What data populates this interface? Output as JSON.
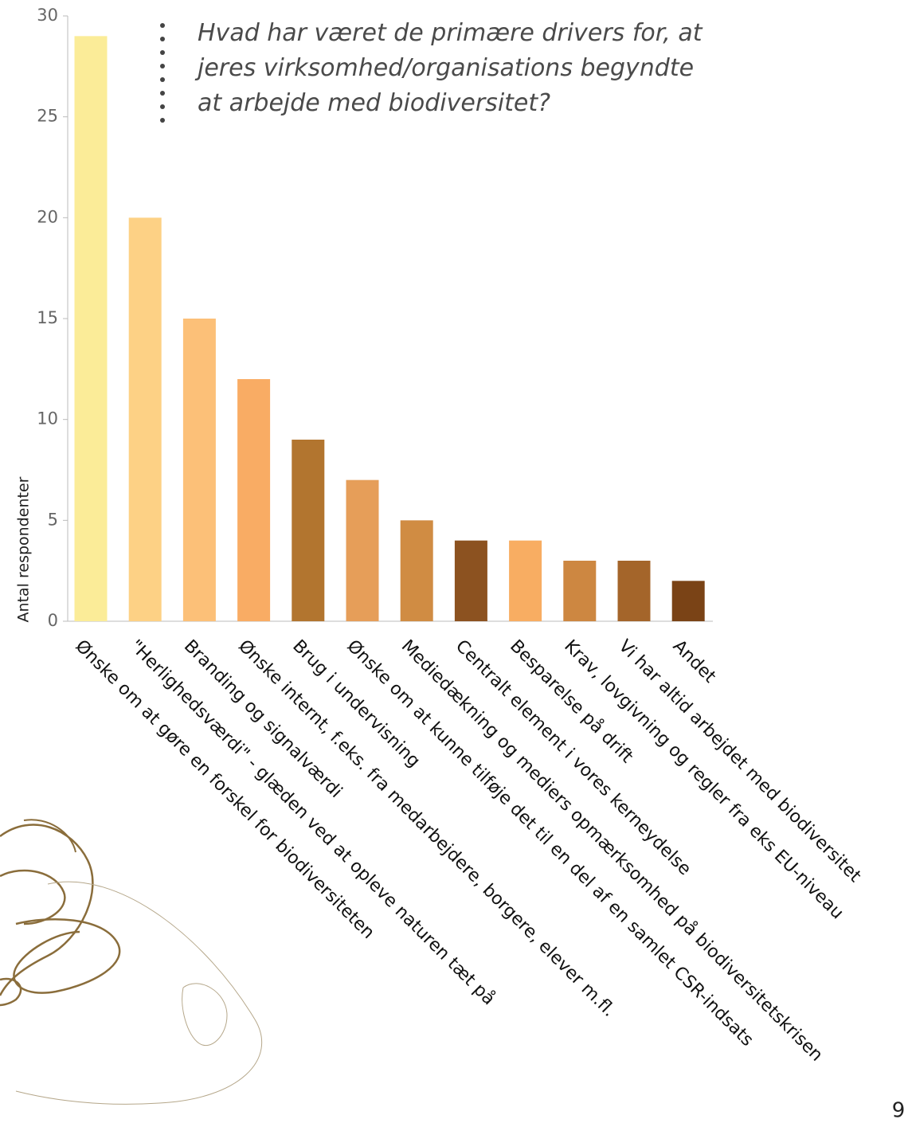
{
  "chart_data": {
    "type": "bar",
    "title": "Hvad har været de primære drivers for, at jeres virksomhed/organisations begyndte at arbejde med biodiversitet?",
    "y_label": "Antal respondenter",
    "categories": [
      "Ønske om at gøre en forskel for biodiversiteten",
      "\"Herlighedsværdi\" - glæden ved at opleve naturen tæt på",
      "Branding og signalværdi",
      "Ønske internt, f.eks. fra medarbejdere, borgere, elever m.fl.",
      "Brug i undervisning",
      "Ønske om at kunne tilføje det til en del af en samlet CSR-indsats",
      "Mediedækning og mediers opmærksomhed på biodiversitetskrisen",
      "Centralt element i vores kerneydelse",
      "Besparelse på drift",
      "Krav, lovgivning og regler fra eks EU-niveau",
      "Vi har altid arbejdet med biodiversitet",
      "Andet"
    ],
    "values": [
      29,
      20,
      15,
      12,
      9,
      7,
      5,
      4,
      4,
      3,
      3,
      2
    ],
    "colors": [
      "#fbec98",
      "#fdd185",
      "#fcc078",
      "#f9ac64",
      "#b2752f",
      "#e69e59",
      "#d08c43",
      "#8c5220",
      "#f8ad62",
      "#cd8741",
      "#a4652a",
      "#7a4316"
    ],
    "ylim": [
      0,
      30
    ],
    "yticks": [
      0,
      5,
      10,
      15,
      20,
      25,
      30
    ],
    "grid": false
  },
  "page_number": "9"
}
